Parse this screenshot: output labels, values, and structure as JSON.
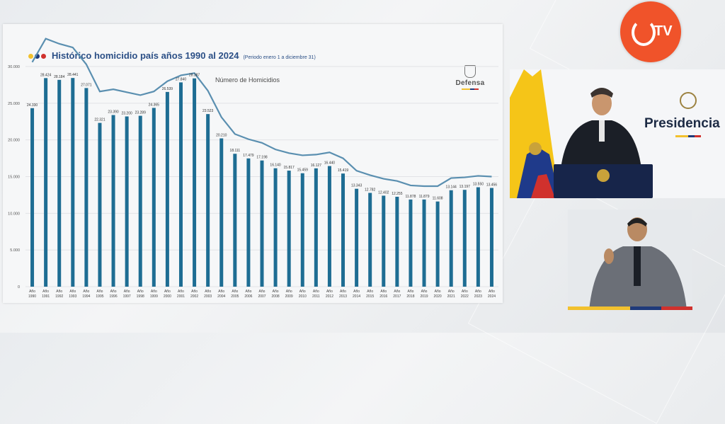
{
  "header": {
    "title": "Histórico homicidio país años 1990 al 2024",
    "subtitle": "(Periodo enero 1 a diciembre 31)",
    "dots": [
      "#f2c12e",
      "#1f3a7a",
      "#d0312d"
    ]
  },
  "logo_defensa": {
    "label": "Defensa"
  },
  "tv_logo": {
    "text": "TV"
  },
  "presidencia": {
    "label": "Presidencia"
  },
  "colors": {
    "bar": "#1e6d93",
    "line": "#5a8fb0",
    "accent": "#2b4f86"
  },
  "chart_data": {
    "type": "bar",
    "title": "Número de Homicidios",
    "xlabel": "",
    "ylabel": "",
    "ylim": [
      0,
      30000
    ],
    "yticks": [
      0,
      5000,
      10000,
      15000,
      20000,
      25000,
      30000
    ],
    "ytick_labels": [
      "0",
      "5.000",
      "10.000",
      "15.000",
      "20.000",
      "25.000",
      "30.000"
    ],
    "grid": true,
    "categories": [
      "Año 1990",
      "Año 1991",
      "Año 1992",
      "Año 1993",
      "Año 1994",
      "Año 1995",
      "Año 1996",
      "Año 1997",
      "Año 1998",
      "Año 1999",
      "Año 2000",
      "Año 2001",
      "Año 2002",
      "Año 2003",
      "Año 2004",
      "Año 2005",
      "Año 2006",
      "Año 2007",
      "Año 2008",
      "Año 2009",
      "Año 2010",
      "Año 2011",
      "Año 2012",
      "Año 2013",
      "Año 2014",
      "Año 2015",
      "Año 2016",
      "Año 2017",
      "Año 2018",
      "Año 2019",
      "Año 2020",
      "Año 2021",
      "Año 2022",
      "Año 2023",
      "Año 2024"
    ],
    "values": [
      24330,
      28424,
      28184,
      28441,
      27071,
      22321,
      23390,
      23200,
      23289,
      24365,
      26539,
      27840,
      28387,
      23523,
      20210,
      18111,
      17479,
      17198,
      16140,
      15817,
      15459,
      16127,
      16440,
      15419,
      13343,
      12782,
      12402,
      12255,
      11878,
      11879,
      11608,
      13144,
      13197,
      13550,
      13456
    ],
    "data_labels": [
      "24.330",
      "28.424",
      "28.184",
      "28.441",
      "27.071",
      "22.321",
      "23.390",
      "23.200",
      "23.289",
      "24.365",
      "26.539",
      "27.840",
      "28.387",
      "23.523",
      "20.210",
      "18.111",
      "17.479",
      "17.198",
      "16.140",
      "15.817",
      "15.459",
      "16.127",
      "16.440",
      "15.419",
      "13.343",
      "12.782",
      "12.402",
      "12.255",
      "11.878",
      "11.879",
      "11.608",
      "13.144",
      "13.197",
      "13.550",
      "13.456"
    ],
    "trend_line": [
      30600,
      33800,
      33100,
      32600,
      30300,
      26600,
      26900,
      26500,
      26100,
      26600,
      28000,
      28800,
      29100,
      26700,
      23100,
      20800,
      20100,
      19600,
      18700,
      18200,
      17900,
      18000,
      18300,
      17500,
      15800,
      15200,
      14700,
      14400,
      13800,
      13700,
      13700,
      14800,
      14900,
      15100,
      15000
    ]
  }
}
